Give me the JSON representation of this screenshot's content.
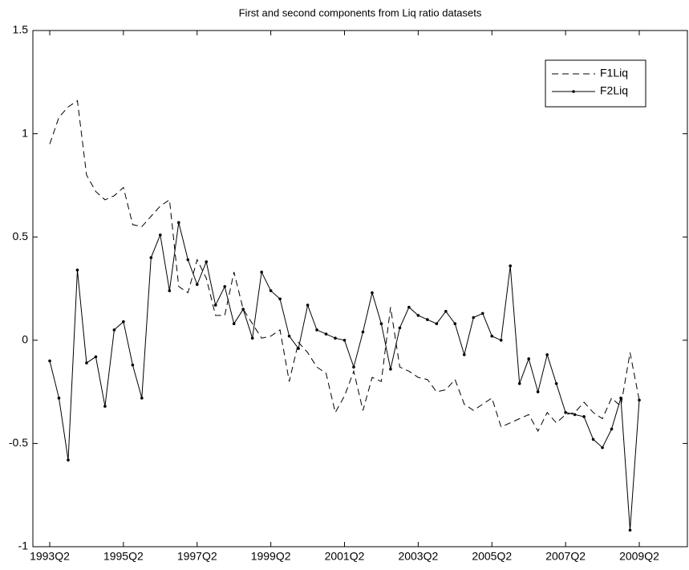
{
  "chart_data": {
    "type": "line",
    "title": "First and second components from Liq ratio datasets",
    "categories": [
      "1993Q2",
      null,
      null,
      null,
      null,
      null,
      null,
      null,
      "1995Q2",
      null,
      null,
      null,
      null,
      null,
      null,
      null,
      "1997Q2",
      null,
      null,
      null,
      null,
      null,
      null,
      null,
      "1999Q2",
      null,
      null,
      null,
      null,
      null,
      null,
      null,
      "2001Q2",
      null,
      null,
      null,
      null,
      null,
      null,
      null,
      "2003Q2",
      null,
      null,
      null,
      null,
      null,
      null,
      null,
      "2005Q2",
      null,
      null,
      null,
      null,
      null,
      null,
      null,
      "2007Q2",
      null,
      null,
      null,
      null,
      null,
      null,
      null,
      "2009Q2"
    ],
    "series": [
      {
        "name": "F1Liq",
        "color": "#000000",
        "style": "dashed",
        "values": [
          0.95,
          1.08,
          1.13,
          1.16,
          0.8,
          0.72,
          0.68,
          0.7,
          0.74,
          0.56,
          0.55,
          0.6,
          0.65,
          0.68,
          0.26,
          0.23,
          0.39,
          0.3,
          0.12,
          0.12,
          0.33,
          0.15,
          0.08,
          0.01,
          0.02,
          0.05,
          -0.2,
          -0.01,
          -0.06,
          -0.13,
          -0.16,
          -0.35,
          -0.27,
          -0.15,
          -0.34,
          -0.18,
          -0.2,
          0.16,
          -0.13,
          -0.15,
          -0.18,
          -0.19,
          -0.25,
          -0.24,
          -0.19,
          -0.31,
          -0.34,
          -0.31,
          -0.28,
          -0.42,
          -0.4,
          -0.38,
          -0.36,
          -0.44,
          -0.35,
          -0.4,
          -0.36,
          -0.35,
          -0.3,
          -0.35,
          -0.38,
          -0.28,
          -0.32,
          -0.06,
          -0.29
        ]
      },
      {
        "name": "F2Liq",
        "color": "#000000",
        "style": "solid-dots",
        "values": [
          -0.1,
          -0.28,
          -0.58,
          0.34,
          -0.11,
          -0.08,
          -0.32,
          0.05,
          0.09,
          -0.12,
          -0.28,
          0.4,
          0.51,
          0.24,
          0.57,
          0.39,
          0.27,
          0.38,
          0.17,
          0.26,
          0.08,
          0.15,
          0.01,
          0.33,
          0.24,
          0.2,
          0.02,
          -0.04,
          0.17,
          0.05,
          0.03,
          0.01,
          0.0,
          -0.13,
          0.04,
          0.23,
          0.08,
          -0.14,
          0.06,
          0.16,
          0.12,
          0.1,
          0.08,
          0.14,
          0.08,
          -0.07,
          0.11,
          0.13,
          0.02,
          0.0,
          0.36,
          -0.21,
          -0.09,
          -0.25,
          -0.07,
          -0.21,
          -0.35,
          -0.36,
          -0.37,
          -0.48,
          -0.52,
          -0.43,
          -0.28,
          -0.92,
          -0.29
        ]
      }
    ],
    "ylim": [
      -1,
      1.5
    ],
    "yticks": [
      -1,
      -0.5,
      0,
      0.5,
      1,
      1.5
    ],
    "grid": false,
    "legend": "northeast"
  }
}
